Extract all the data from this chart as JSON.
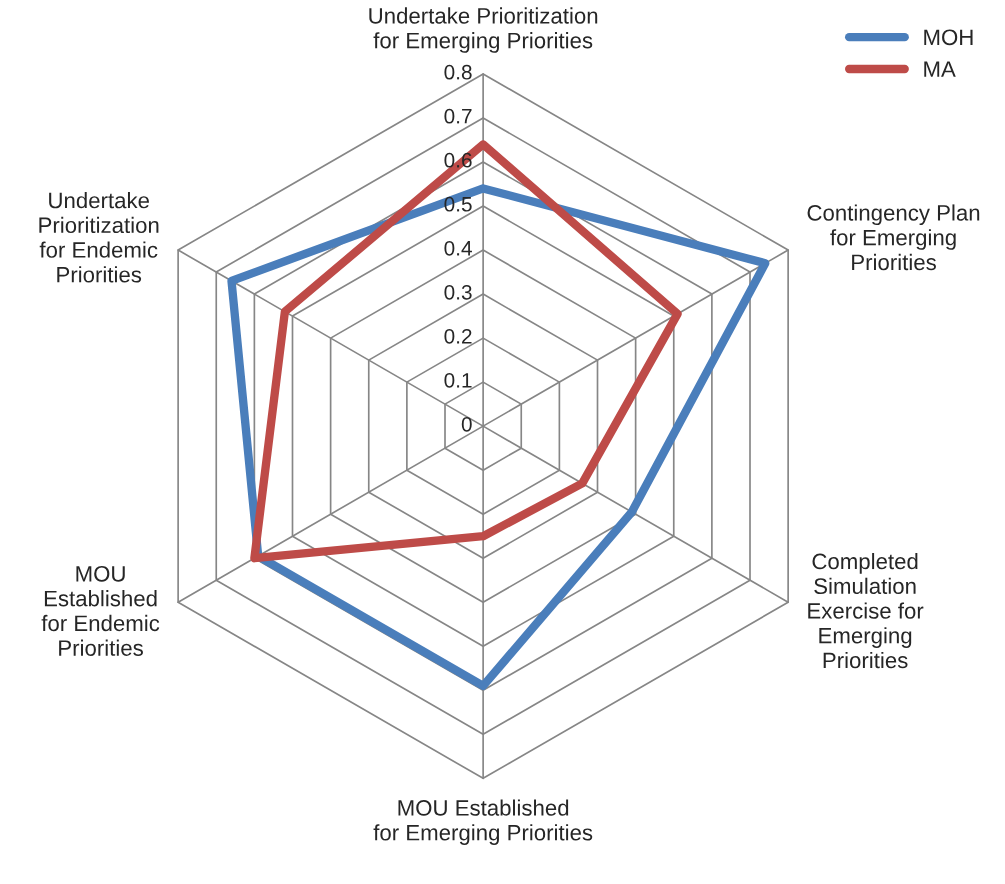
{
  "chart_data": {
    "type": "radar",
    "categories": [
      "Undertake Prioritization\nfor Emerging Priorities",
      "Contingency Plan\nfor Emerging\nPriorities",
      "Completed\nSimulation\nExercise for\nEmerging\nPriorities",
      "MOU Established\nfor Emerging Priorities",
      "MOU\nEstablished\nfor Endemic\nPriorities",
      "Undertake\nPrioritization\nfor Endemic\nPriorities"
    ],
    "series": [
      {
        "name": "MOH",
        "color": "#4a7ebb",
        "values": [
          0.54,
          0.74,
          0.39,
          0.59,
          0.59,
          0.66
        ]
      },
      {
        "name": "MA",
        "color": "#be4b48",
        "values": [
          0.64,
          0.51,
          0.26,
          0.25,
          0.6,
          0.52
        ]
      }
    ],
    "ylim": [
      0,
      0.8
    ],
    "yticks": [
      0,
      0.1,
      0.2,
      0.3,
      0.4,
      0.5,
      0.6,
      0.7,
      0.8
    ],
    "grid": true,
    "legend": "top right"
  }
}
